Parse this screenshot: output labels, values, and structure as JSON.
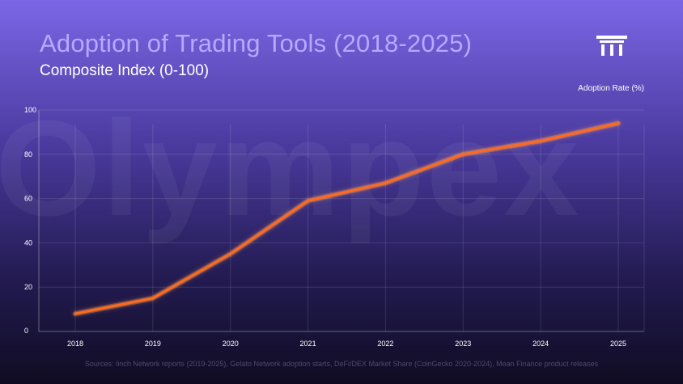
{
  "header": {
    "title": "Adoption of Trading Tools (2018-2025)",
    "subtitle": "Composite Index  (0-100)",
    "logo_icon": "pillar-logo-icon"
  },
  "watermark": "Olympex",
  "footer": {
    "sources": "Sources: Iinch Network reports (2019-2025), Gelato Network adoption starts, DeFi/DEX Market Share (CoinGecko 2020-2024), Mean Finance product releases"
  },
  "colors": {
    "line": "#ff6a1f",
    "line_glow": "#ff9a4a",
    "grid": "rgba(255,255,255,0.12)",
    "axis": "rgba(255,255,255,0.35)"
  },
  "chart_data": {
    "type": "line",
    "title": "Adoption of Trading Tools (2018-2025)",
    "subtitle": "Composite Index  (0-100)",
    "xlabel": "",
    "ylabel": "",
    "categories": [
      "2018",
      "2019",
      "2020",
      "2021",
      "2022",
      "2023",
      "2024",
      "2025"
    ],
    "yticks": [
      0,
      20,
      40,
      60,
      80,
      100
    ],
    "ylim": [
      0,
      100
    ],
    "grid": true,
    "legend_position": "top-right",
    "series": [
      {
        "name": "Adoption Rate (%)",
        "values": [
          8,
          15,
          35,
          59,
          67,
          80,
          86,
          94
        ]
      }
    ]
  }
}
